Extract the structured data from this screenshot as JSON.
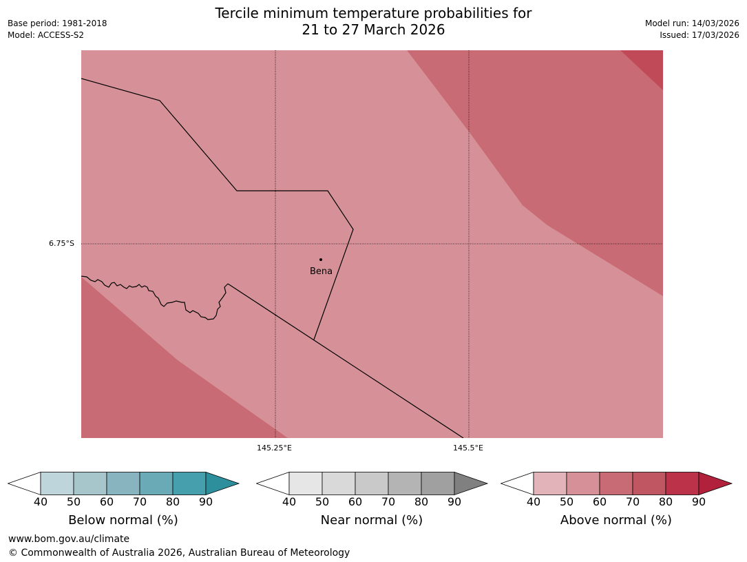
{
  "header": {
    "title_line1": "Tercile minimum temperature probabilities for",
    "title_line2": "21 to 27 March 2026",
    "base_period": "Base period: 1981-2018",
    "model": "Model: ACCESS-S2",
    "model_run": "Model run: 14/03/2026",
    "issued": "Issued: 17/03/2026"
  },
  "map": {
    "lat_label": "6.75°S",
    "lon_labels": [
      "145.25°E",
      "145.5°E"
    ],
    "place_label": "Bena",
    "colors": {
      "above_50_60": "#d69198",
      "above_60_70": "#c96b74",
      "above_80_90": "#c04a57"
    }
  },
  "colorbars": [
    {
      "label": "Below normal (%)",
      "ticks": [
        "40",
        "50",
        "60",
        "70",
        "80",
        "90"
      ],
      "colors": [
        "#ffffff",
        "#bfd5dc",
        "#a6c6cc",
        "#88b4c0",
        "#6aaab6",
        "#469fac",
        "#2e8f9c"
      ]
    },
    {
      "label": "Near normal (%)",
      "ticks": [
        "40",
        "50",
        "60",
        "70",
        "80",
        "90"
      ],
      "colors": [
        "#ffffff",
        "#e6e6e6",
        "#d9d9d9",
        "#c9c9c9",
        "#b4b4b4",
        "#a0a0a0",
        "#808080"
      ]
    },
    {
      "label": "Above normal (%)",
      "ticks": [
        "40",
        "50",
        "60",
        "70",
        "80",
        "90"
      ],
      "colors": [
        "#ffffff",
        "#e2b4b9",
        "#d69198",
        "#c96b74",
        "#c05662",
        "#bb3249",
        "#b2213b"
      ]
    }
  ],
  "footer": {
    "url": "www.bom.gov.au/climate",
    "copyright": "© Commonwealth of Australia 2026, Australian Bureau of Meteorology"
  }
}
